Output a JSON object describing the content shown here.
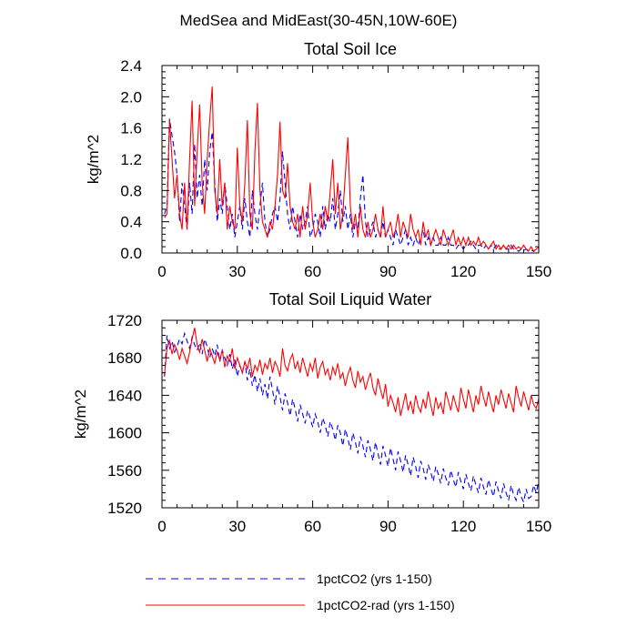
{
  "figure": {
    "title": "MedSea and MidEast(30-45N,10W-60E)"
  },
  "legend": [
    {
      "label": "1pctCO2 (yrs 1-150)",
      "color": "#0000ff",
      "dash": "dashed"
    },
    {
      "label": "1pctCO2-rad (yrs 1-150)",
      "color": "#ff0000",
      "dash": "solid"
    }
  ],
  "chart_data": [
    {
      "type": "line",
      "title": "Total Soil Ice",
      "xlabel": "",
      "ylabel": "kg/m^2",
      "xlim": [
        0,
        150
      ],
      "ylim": [
        0,
        2.4
      ],
      "xticks": [
        0,
        30,
        60,
        90,
        120,
        150
      ],
      "yticks": [
        0.0,
        0.4,
        0.8,
        1.2,
        1.6,
        2.0,
        2.4
      ],
      "xtick_labels": [
        "0",
        "30",
        "60",
        "90",
        "120",
        "150"
      ],
      "ytick_labels": [
        "0.0",
        "0.4",
        "0.8",
        "1.2",
        "1.6",
        "2.0",
        "2.4"
      ],
      "x_start": 1,
      "x_step": 1,
      "series": [
        {
          "name": "1pctCO2 (yrs 1-150)",
          "color": "#0000ff",
          "dash": "dashed",
          "values": [
            0.5,
            0.6,
            1.72,
            1.5,
            1.3,
            1.0,
            0.4,
            0.9,
            0.6,
            0.3,
            0.9,
            0.5,
            1.4,
            0.7,
            1.0,
            0.6,
            1.2,
            0.8,
            1.3,
            1.55,
            0.9,
            0.4,
            0.7,
            0.5,
            0.9,
            0.6,
            0.3,
            0.5,
            0.2,
            0.4,
            0.6,
            0.3,
            0.7,
            0.4,
            0.2,
            0.8,
            0.5,
            0.3,
            0.6,
            0.9,
            0.4,
            0.2,
            0.3,
            0.5,
            0.6,
            0.4,
            0.7,
            1.3,
            0.9,
            0.5,
            0.3,
            0.6,
            0.4,
            0.2,
            0.5,
            0.3,
            0.4,
            0.6,
            0.2,
            0.3,
            0.5,
            0.4,
            0.2,
            0.6,
            0.3,
            0.5,
            0.4,
            0.7,
            0.3,
            0.5,
            0.8,
            0.4,
            0.6,
            0.3,
            0.5,
            0.2,
            0.4,
            0.3,
            0.7,
            1.0,
            0.4,
            0.2,
            0.3,
            0.4,
            0.2,
            0.3,
            0.2,
            0.4,
            0.2,
            0.3,
            0.2,
            0.1,
            0.3,
            0.2,
            0.1,
            0.2,
            0.3,
            0.1,
            0.2,
            0.1,
            0.2,
            0.1,
            0.2,
            0.3,
            0.1,
            0.2,
            0.1,
            0.2,
            0.1,
            0.1,
            0.2,
            0.1,
            0.1,
            0.2,
            0.1,
            0.1,
            0.05,
            0.1,
            0.1,
            0.05,
            0.1,
            0.1,
            0.15,
            0.1,
            0.05,
            0.1,
            0.1,
            0.05,
            0.1,
            0.05,
            0.1,
            0.05,
            0.1,
            0.05,
            0.05,
            0.1,
            0.05,
            0.05,
            0.1,
            0.05,
            0.05,
            0.02,
            0.05,
            0.03,
            0.05,
            0.02,
            0.04,
            0.02,
            0.05,
            0.03
          ]
        },
        {
          "name": "1pctCO2-rad (yrs 1-150)",
          "color": "#ff0000",
          "dash": "solid",
          "values": [
            0.45,
            0.5,
            1.7,
            1.2,
            0.7,
            1.0,
            0.5,
            0.3,
            0.9,
            0.3,
            1.2,
            1.95,
            0.6,
            1.3,
            1.9,
            0.9,
            0.5,
            1.2,
            1.7,
            2.13,
            0.8,
            0.5,
            1.2,
            0.6,
            0.9,
            0.3,
            0.6,
            0.4,
            0.3,
            1.35,
            0.6,
            0.4,
            0.9,
            1.7,
            0.5,
            0.3,
            1.3,
            1.92,
            0.8,
            0.4,
            0.3,
            0.2,
            0.4,
            0.3,
            0.6,
            1.0,
            1.68,
            0.8,
            0.7,
            1.15,
            0.6,
            0.4,
            0.3,
            0.5,
            0.2,
            0.6,
            0.3,
            0.5,
            0.9,
            0.4,
            0.2,
            0.3,
            0.5,
            0.3,
            0.6,
            0.4,
            0.8,
            1.2,
            0.5,
            0.9,
            0.3,
            0.5,
            1.0,
            1.48,
            0.6,
            0.3,
            0.5,
            0.2,
            0.6,
            0.3,
            0.2,
            0.4,
            0.2,
            0.3,
            0.5,
            0.3,
            0.2,
            0.6,
            0.2,
            0.3,
            0.4,
            0.2,
            0.3,
            0.5,
            0.2,
            0.4,
            0.3,
            0.2,
            0.5,
            0.3,
            0.2,
            0.3,
            0.1,
            0.4,
            0.2,
            0.3,
            0.1,
            0.2,
            0.3,
            0.2,
            0.1,
            0.3,
            0.2,
            0.1,
            0.2,
            0.3,
            0.1,
            0.2,
            0.1,
            0.2,
            0.1,
            0.2,
            0.1,
            0.15,
            0.1,
            0.2,
            0.1,
            0.15,
            0.1,
            0.05,
            0.1,
            0.15,
            0.05,
            0.1,
            0.05,
            0.1,
            0.05,
            0.1,
            0.05,
            0.1,
            0.05,
            0.08,
            0.05,
            0.1,
            0.05,
            0.03,
            0.08,
            0.02,
            0.05,
            0.07
          ]
        }
      ]
    },
    {
      "type": "line",
      "title": "Total Soil Liquid Water",
      "xlabel": "",
      "ylabel": "kg/m^2",
      "xlim": [
        0,
        150
      ],
      "ylim": [
        1520,
        1720
      ],
      "xticks": [
        0,
        30,
        60,
        90,
        120,
        150
      ],
      "yticks": [
        1520,
        1560,
        1600,
        1640,
        1680,
        1720
      ],
      "xtick_labels": [
        "0",
        "30",
        "60",
        "90",
        "120",
        "150"
      ],
      "ytick_labels": [
        "1520",
        "1560",
        "1600",
        "1640",
        "1680",
        "1720"
      ],
      "x_start": 1,
      "x_step": 1,
      "series": [
        {
          "name": "1pctCO2 (yrs 1-150)",
          "color": "#0000ff",
          "dash": "dashed",
          "values": [
            1660,
            1704,
            1690,
            1698,
            1686,
            1692,
            1700,
            1695,
            1706,
            1698,
            1690,
            1702,
            1694,
            1688,
            1696,
            1684,
            1700,
            1692,
            1680,
            1690,
            1682,
            1694,
            1676,
            1688,
            1680,
            1672,
            1684,
            1668,
            1678,
            1660,
            1672,
            1664,
            1676,
            1656,
            1668,
            1650,
            1662,
            1644,
            1658,
            1640,
            1652,
            1636,
            1660,
            1646,
            1630,
            1650,
            1638,
            1624,
            1642,
            1632,
            1618,
            1636,
            1626,
            1612,
            1630,
            1620,
            1610,
            1624,
            1616,
            1606,
            1620,
            1612,
            1600,
            1616,
            1608,
            1596,
            1612,
            1604,
            1592,
            1608,
            1600,
            1586,
            1604,
            1594,
            1582,
            1600,
            1590,
            1578,
            1596,
            1586,
            1574,
            1592,
            1582,
            1570,
            1590,
            1578,
            1566,
            1586,
            1576,
            1564,
            1584,
            1572,
            1560,
            1580,
            1570,
            1558,
            1576,
            1566,
            1554,
            1574,
            1564,
            1552,
            1570,
            1562,
            1550,
            1566,
            1558,
            1548,
            1564,
            1556,
            1546,
            1562,
            1552,
            1544,
            1560,
            1550,
            1542,
            1558,
            1548,
            1540,
            1556,
            1546,
            1538,
            1554,
            1544,
            1536,
            1552,
            1542,
            1534,
            1550,
            1540,
            1532,
            1548,
            1538,
            1530,
            1546,
            1536,
            1528,
            1544,
            1534,
            1528,
            1542,
            1532,
            1526,
            1540,
            1530,
            1532,
            1544,
            1536,
            1548
          ]
        },
        {
          "name": "1pctCO2-rad (yrs 1-150)",
          "color": "#ff0000",
          "dash": "solid",
          "values": [
            1662,
            1690,
            1698,
            1684,
            1694,
            1688,
            1678,
            1690,
            1682,
            1674,
            1686,
            1700,
            1712,
            1694,
            1686,
            1700,
            1688,
            1676,
            1690,
            1682,
            1674,
            1686,
            1678,
            1688,
            1670,
            1682,
            1676,
            1690,
            1668,
            1680,
            1672,
            1664,
            1676,
            1668,
            1680,
            1660,
            1672,
            1666,
            1678,
            1662,
            1674,
            1668,
            1680,
            1664,
            1676,
            1670,
            1660,
            1690,
            1672,
            1666,
            1678,
            1684,
            1668,
            1676,
            1664,
            1680,
            1670,
            1660,
            1674,
            1666,
            1680,
            1658,
            1670,
            1676,
            1662,
            1668,
            1656,
            1670,
            1662,
            1674,
            1658,
            1664,
            1650,
            1662,
            1670,
            1656,
            1648,
            1666,
            1654,
            1660,
            1646,
            1656,
            1664,
            1648,
            1640,
            1658,
            1646,
            1636,
            1652,
            1628,
            1640,
            1632,
            1622,
            1638,
            1618,
            1630,
            1642,
            1624,
            1634,
            1620,
            1640,
            1628,
            1622,
            1636,
            1626,
            1644,
            1630,
            1618,
            1638,
            1626,
            1632,
            1620,
            1644,
            1634,
            1624,
            1640,
            1630,
            1622,
            1648,
            1636,
            1626,
            1646,
            1634,
            1622,
            1640,
            1630,
            1650,
            1638,
            1628,
            1644,
            1632,
            1622,
            1640,
            1630,
            1646,
            1636,
            1626,
            1642,
            1632,
            1622,
            1650,
            1638,
            1628,
            1644,
            1634,
            1624,
            1640,
            1630,
            1626,
            1636
          ]
        }
      ]
    }
  ]
}
